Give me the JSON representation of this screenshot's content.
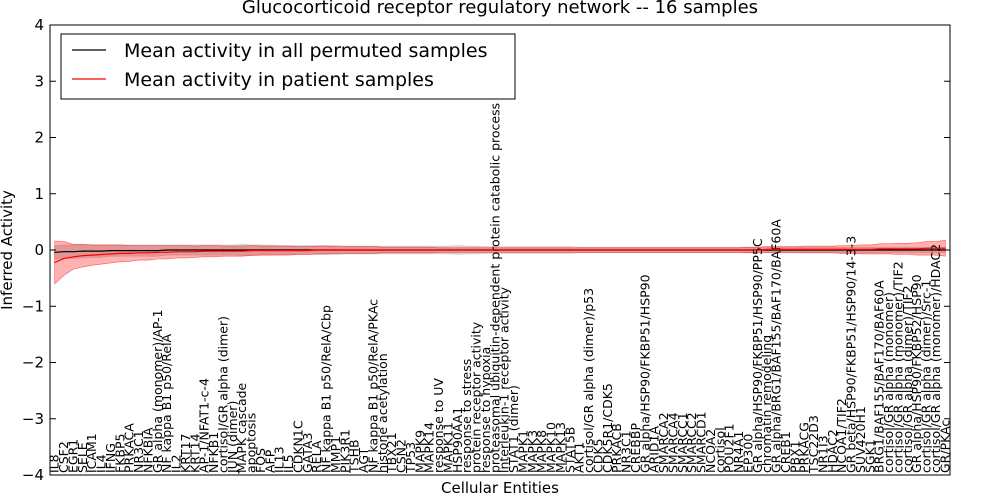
{
  "chart_data": {
    "type": "line",
    "title": "Glucocorticoid receptor regulatory network -- 16 samples",
    "xlabel": "Cellular Entities",
    "ylabel": "Inferred Activity",
    "ylim": [
      -4,
      4
    ],
    "yticks": [
      -4,
      -3,
      -2,
      -1,
      0,
      1,
      2,
      3,
      4
    ],
    "legend_position": "top-left",
    "colors": {
      "mean_all": "#000000",
      "mean_patient": "#ff0000",
      "band_all": "#b0b0b0",
      "band_patient": "#ff0000"
    },
    "categories": [
      "IL8",
      "CSF2",
      "EGR1",
      "SELE",
      "ICAM1",
      "IL4",
      "IFNG",
      "FKBP5",
      "PRKACA",
      "NR3C1",
      "NFKBIA",
      "GR alpha (monomer)/AP-1",
      "NF kappa B1 p50/RelA",
      "IL2",
      "KRT17",
      "KRT14",
      "AP-1/NFAT1-c-4",
      "NFKB1",
      "cortisol/GR alpha (dimer)",
      "JUN (dimer)",
      "MAPK cascade",
      "apoptosis",
      "FOS",
      "AFP",
      "IL13",
      "IL5",
      "CDKN1C",
      "GATA3",
      "RELA",
      "NF kappa B1 p50/RelA/Cbp",
      "MMP1",
      "PIK3R1",
      "TSHB",
      "AGT",
      "NF kappa B1 p50/RelA/PKAc",
      "histone acetylation",
      "TBX21",
      "CSN2",
      "TP53",
      "MAPK9",
      "MAPK14",
      "response to UV",
      "MAPK11",
      "HSP90AA1",
      "response to stress",
      "protein receptor activity",
      "response to hypoxia",
      "proteasomal ubiquitin-dependent protein catabolic process",
      "interleukin-1 receptor activity",
      "STAT1 (dimer)",
      "MAPK1",
      "MAPK3",
      "MAPK8",
      "MAPK10",
      "MAPK13",
      "STAT5B",
      "AKT1",
      "cortisol/GR alpha (dimer)/p53",
      "CDK5",
      "CDK5R1/CDK5",
      "PRKACB",
      "NR3C1",
      "CREBBP",
      "GR alpha/HSP90/FKBP51/HSP90",
      "ARID1A",
      "SMARCA2",
      "SMARCA4",
      "SMARCC1",
      "SMARCC2",
      "SMARCD1",
      "NCOA2",
      "cortisol",
      "POU2F1",
      "NR4A1",
      "EP300",
      "GR alpha/HSP90/FKBP51/HSP90/PP5C",
      "chromatin remodeling",
      "GR alpha/BRG1/BAF155/BAF170/BAF60A",
      "CREB1",
      "PBX1",
      "PRKACG",
      "TSC22D3",
      "NR1I3",
      "HDAC2",
      "NCOA1/TIF2",
      "GR beta/HSP90/FKBP51/HSP90/14-3-3",
      "SUV420H1",
      "SGK1",
      "BRG1/BAF155/BAF170/BAF60A",
      "cortisol/GR alpha (monomer)",
      "cortisol/GR alpha (monomer)/TIF2",
      "cortisol/GR alpha (dimer)/TIF2",
      "GR alpha/HSP90/FKBP52/HSP90",
      "cortisol/GR alpha (dimer)/Src-1",
      "cortisol/GR alpha (monomer)/HDAC2",
      "GR/PKAc"
    ],
    "series": [
      {
        "name": "Mean activity in all permuted samples",
        "color": "#000000",
        "values": [
          -0.04,
          -0.03,
          -0.03,
          -0.02,
          -0.02,
          -0.02,
          -0.01,
          -0.01,
          -0.01,
          -0.01,
          -0.01,
          -0.01,
          0,
          0,
          0,
          0,
          0,
          0,
          0,
          0,
          0,
          0,
          0,
          0,
          0,
          0,
          0,
          0,
          0,
          0,
          0,
          0,
          0,
          0,
          0,
          0,
          0,
          0,
          0,
          0,
          0,
          0,
          0,
          0,
          0,
          0,
          0,
          0,
          0,
          0,
          0,
          0,
          0,
          0,
          0,
          0,
          0,
          0,
          0,
          0,
          0,
          0,
          0,
          0,
          0,
          0,
          0,
          0,
          0,
          0,
          0,
          0,
          0,
          0,
          0,
          0,
          0,
          0,
          0,
          0,
          0,
          0,
          0,
          0,
          0,
          0,
          0,
          0,
          0,
          0,
          0,
          0,
          0,
          0,
          0,
          0
        ],
        "band": [
          0.12,
          0.12,
          0.12,
          0.12,
          0.11,
          0.11,
          0.1,
          0.1,
          0.1,
          0.1,
          0.1,
          0.1,
          0.09,
          0.09,
          0.09,
          0.09,
          0.09,
          0.09,
          0.09,
          0.09,
          0.1,
          0.09,
          0.09,
          0.09,
          0.08,
          0.08,
          0.08,
          0.08,
          0.08,
          0.08,
          0.08,
          0.07,
          0.07,
          0.07,
          0.07,
          0.07,
          0.07,
          0.07,
          0.07,
          0.07,
          0.07,
          0.07,
          0.07,
          0.08,
          0.07,
          0.07,
          0.06,
          0.06,
          0.06,
          0.06,
          0.06,
          0.06,
          0.06,
          0.06,
          0.06,
          0.06,
          0.05,
          0.05,
          0.05,
          0.05,
          0.05,
          0.05,
          0.05,
          0.05,
          0.05,
          0.05,
          0.05,
          0.05,
          0.05,
          0.05,
          0.05,
          0.05,
          0.05,
          0.05,
          0.05,
          0.05,
          0.05,
          0.05,
          0.05,
          0.05,
          0.05,
          0.05,
          0.05,
          0.05,
          0.05,
          0.05,
          0.05,
          0.05,
          0.05,
          0.05,
          0.05,
          0.05,
          0.05,
          0.05,
          0.05,
          0.05
        ]
      },
      {
        "name": "Mean activity in patient samples",
        "color": "#ff0000",
        "values": [
          -0.22,
          -0.15,
          -0.12,
          -0.1,
          -0.09,
          -0.08,
          -0.07,
          -0.06,
          -0.06,
          -0.05,
          -0.05,
          -0.04,
          -0.04,
          -0.03,
          -0.03,
          -0.03,
          -0.02,
          -0.02,
          -0.02,
          -0.02,
          -0.02,
          -0.01,
          -0.01,
          -0.01,
          -0.01,
          -0.01,
          -0.01,
          -0.01,
          0,
          0,
          0,
          0,
          0,
          0,
          0,
          0,
          0,
          0,
          0,
          0,
          0,
          0,
          0,
          0,
          0,
          0,
          0,
          0,
          0,
          0,
          0,
          0,
          0,
          0,
          0,
          0,
          0,
          0,
          0,
          0,
          0,
          0,
          0,
          0,
          0,
          0,
          0,
          0,
          0,
          0,
          0,
          0,
          0,
          0,
          0,
          0,
          0.01,
          0.01,
          0.01,
          0.01,
          0.01,
          0.01,
          0.01,
          0.01,
          0.01,
          0.01,
          0.01,
          0.01,
          0.02,
          0.02,
          0.02,
          0.02,
          0.02,
          0.03,
          0.03,
          0.03
        ],
        "band": [
          0.38,
          0.3,
          0.22,
          0.2,
          0.18,
          0.17,
          0.16,
          0.15,
          0.14,
          0.13,
          0.13,
          0.12,
          0.12,
          0.11,
          0.11,
          0.1,
          0.1,
          0.1,
          0.09,
          0.09,
          0.09,
          0.09,
          0.08,
          0.08,
          0.08,
          0.08,
          0.07,
          0.07,
          0.07,
          0.07,
          0.06,
          0.06,
          0.06,
          0.06,
          0.06,
          0.05,
          0.05,
          0.05,
          0.05,
          0.05,
          0.05,
          0.04,
          0.04,
          0.04,
          0.04,
          0.04,
          0.04,
          0.04,
          0.04,
          0.04,
          0.04,
          0.04,
          0.04,
          0.04,
          0.04,
          0.04,
          0.04,
          0.04,
          0.04,
          0.04,
          0.04,
          0.04,
          0.04,
          0.04,
          0.04,
          0.04,
          0.04,
          0.04,
          0.04,
          0.04,
          0.04,
          0.04,
          0.04,
          0.04,
          0.05,
          0.05,
          0.05,
          0.05,
          0.05,
          0.05,
          0.06,
          0.06,
          0.06,
          0.06,
          0.07,
          0.07,
          0.08,
          0.08,
          0.09,
          0.09,
          0.1,
          0.1,
          0.11,
          0.12,
          0.12,
          0.14
        ]
      }
    ]
  }
}
